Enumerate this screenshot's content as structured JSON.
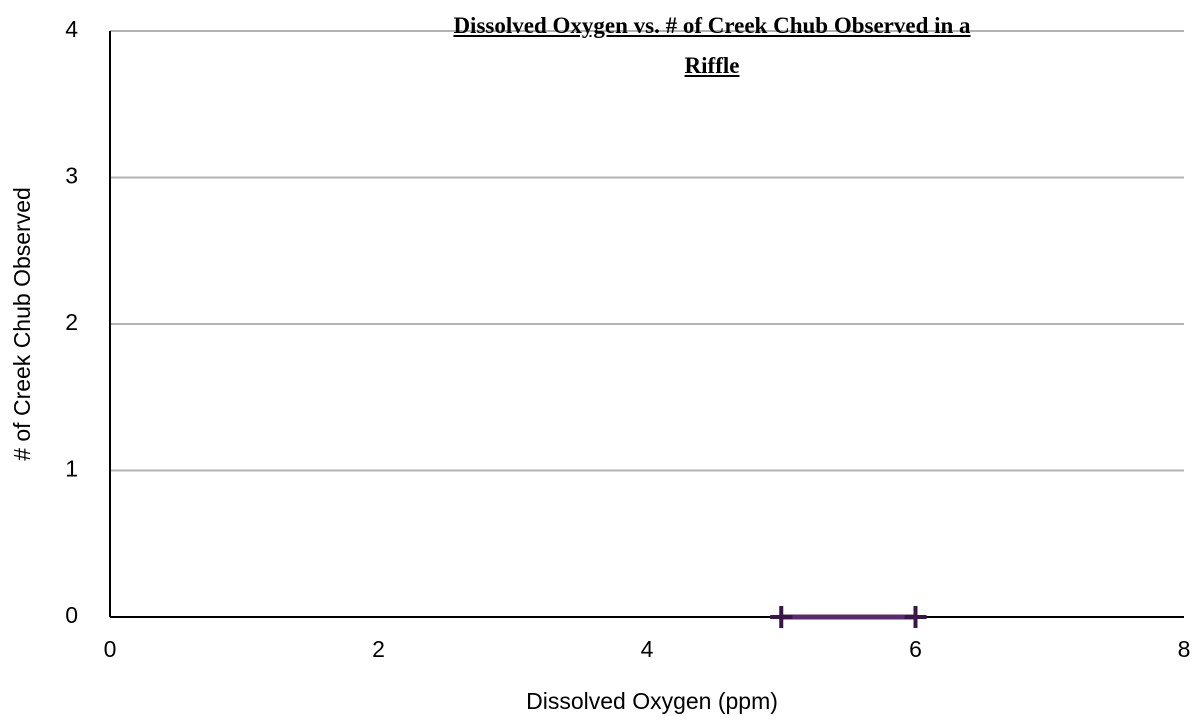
{
  "chart_data": {
    "type": "line",
    "title": "Dissolved Oxygen vs. # of Creek Chub Observed in a Riffle",
    "x_label": "Dissolved Oxygen (ppm)",
    "y_label": "# of Creek Chub Observed",
    "series": [
      {
        "color": "#5a2a6e",
        "x": [
          5,
          6
        ],
        "values": [
          0,
          0
        ]
      }
    ],
    "xlim": [
      0,
      8
    ],
    "xticks": [
      0,
      2,
      4,
      6,
      8
    ],
    "ylim": [
      0,
      4
    ],
    "yticks": [
      0,
      1,
      2,
      3,
      4
    ],
    "grid": true,
    "marker": "plus"
  }
}
